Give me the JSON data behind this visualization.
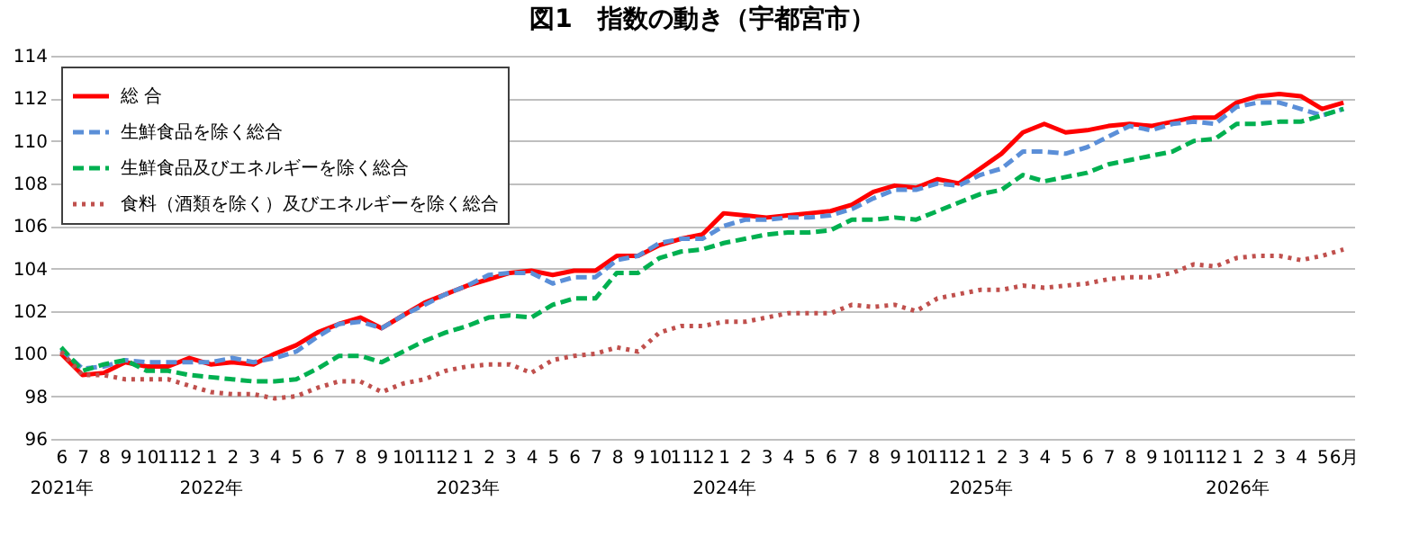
{
  "chart_data": {
    "type": "line",
    "title": "図1　指数の動き（宇都宮市）",
    "categories": [
      "6\n2021年",
      "7",
      "8",
      "9",
      "10",
      "11",
      "12",
      "1\n2022年",
      "2",
      "3",
      "4",
      "5",
      "6",
      "7",
      "8",
      "9",
      "10",
      "11",
      "12",
      "1\n2023年",
      "2",
      "3",
      "4",
      "5",
      "6",
      "7",
      "8",
      "9",
      "10",
      "11",
      "12",
      "1\n2024年",
      "2",
      "3",
      "4",
      "5",
      "6",
      "7",
      "8",
      "9",
      "10",
      "11",
      "12",
      "1\n2025年",
      "2",
      "3",
      "4",
      "5",
      "6",
      "7",
      "8",
      "9",
      "10",
      "11",
      "12",
      "1\n2026年",
      "2",
      "3",
      "4",
      "5",
      "6月"
    ],
    "series": [
      {
        "name": "総  合",
        "color": "#ff0000",
        "line_style": "solid",
        "values": [
          100.0,
          99.0,
          99.1,
          99.6,
          99.4,
          99.4,
          99.8,
          99.5,
          99.6,
          99.5,
          100.0,
          100.4,
          101.0,
          101.4,
          101.7,
          101.2,
          101.8,
          102.4,
          102.8,
          103.2,
          103.5,
          103.8,
          103.9,
          103.7,
          103.9,
          103.9,
          104.6,
          104.6,
          105.1,
          105.4,
          105.6,
          106.6,
          106.5,
          106.4,
          106.5,
          106.6,
          106.7,
          107.0,
          107.6,
          107.9,
          107.8,
          108.2,
          108.0,
          108.7,
          109.4,
          110.4,
          110.8,
          110.4,
          110.5,
          110.7,
          110.8,
          110.7,
          110.9,
          111.1,
          111.1,
          111.8,
          112.1,
          112.2,
          112.1,
          111.5,
          111.8
        ]
      },
      {
        "name": "生鮮食品を除く総合",
        "color": "#5b8fd8",
        "line_style": "dashed",
        "values": [
          100.2,
          99.3,
          99.4,
          99.7,
          99.6,
          99.6,
          99.6,
          99.6,
          99.8,
          99.6,
          99.8,
          100.1,
          100.8,
          101.4,
          101.5,
          101.2,
          101.8,
          102.3,
          102.8,
          103.2,
          103.7,
          103.8,
          103.8,
          103.3,
          103.6,
          103.6,
          104.4,
          104.6,
          105.2,
          105.4,
          105.4,
          106.0,
          106.3,
          106.3,
          106.4,
          106.4,
          106.5,
          106.8,
          107.3,
          107.7,
          107.7,
          108.0,
          107.9,
          108.4,
          108.7,
          109.5,
          109.5,
          109.4,
          109.7,
          110.2,
          110.7,
          110.5,
          110.8,
          110.9,
          110.8,
          111.6,
          111.8,
          111.8,
          111.5,
          111.2,
          111.5
        ]
      },
      {
        "name": "生鮮食品及びエネルギーを除く総合",
        "color": "#00b050",
        "line_style": "dashed",
        "values": [
          100.3,
          99.2,
          99.5,
          99.7,
          99.2,
          99.2,
          99.0,
          98.9,
          98.8,
          98.7,
          98.7,
          98.8,
          99.3,
          99.9,
          99.9,
          99.6,
          100.1,
          100.6,
          101.0,
          101.3,
          101.7,
          101.8,
          101.7,
          102.3,
          102.6,
          102.6,
          103.8,
          103.8,
          104.5,
          104.8,
          104.9,
          105.2,
          105.4,
          105.6,
          105.7,
          105.7,
          105.8,
          106.3,
          106.3,
          106.4,
          106.3,
          106.7,
          107.1,
          107.5,
          107.7,
          108.4,
          108.1,
          108.3,
          108.5,
          108.9,
          109.1,
          109.3,
          109.5,
          110.0,
          110.1,
          110.8,
          110.8,
          110.9,
          110.9,
          111.2,
          111.5
        ]
      },
      {
        "name": "食料（酒類を除く）及びエネルギーを除く総合",
        "color": "#c0504d",
        "line_style": "dotted",
        "values": [
          100.1,
          99.0,
          99.0,
          98.8,
          98.8,
          98.8,
          98.5,
          98.2,
          98.1,
          98.1,
          97.9,
          98.0,
          98.4,
          98.7,
          98.7,
          98.2,
          98.6,
          98.8,
          99.2,
          99.4,
          99.5,
          99.5,
          99.1,
          99.7,
          99.9,
          100.0,
          100.3,
          100.1,
          101.0,
          101.3,
          101.3,
          101.5,
          101.5,
          101.7,
          101.9,
          101.9,
          101.9,
          102.3,
          102.2,
          102.3,
          102.0,
          102.6,
          102.8,
          103.0,
          103.0,
          103.2,
          103.1,
          103.2,
          103.3,
          103.5,
          103.6,
          103.6,
          103.8,
          104.2,
          104.1,
          104.5,
          104.6,
          104.6,
          104.4,
          104.6,
          104.9
        ]
      }
    ],
    "ylim": [
      96,
      114
    ],
    "yticks": [
      96,
      98,
      100,
      102,
      104,
      106,
      108,
      110,
      112,
      114
    ],
    "grid": "y",
    "legend": "top left"
  }
}
